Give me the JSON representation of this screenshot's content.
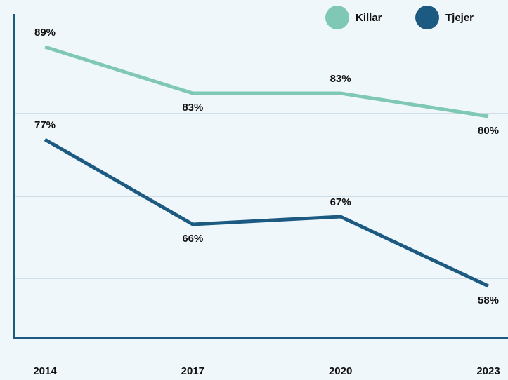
{
  "chart_data": {
    "type": "line",
    "categories": [
      "2014",
      "2017",
      "2020",
      "2023"
    ],
    "series": [
      {
        "name": "Killar",
        "color": "#7ec8b5",
        "values": [
          89,
          83,
          83,
          80
        ],
        "value_labels": [
          "89%",
          "83%",
          "83%",
          "80%"
        ]
      },
      {
        "name": "Tjejer",
        "color": "#1d5a82",
        "values": [
          77,
          66,
          67,
          58
        ],
        "value_labels": [
          "77%",
          "66%",
          "67%",
          "58%"
        ]
      }
    ],
    "ylim": [
      50,
      95
    ],
    "legend": "top-right"
  }
}
